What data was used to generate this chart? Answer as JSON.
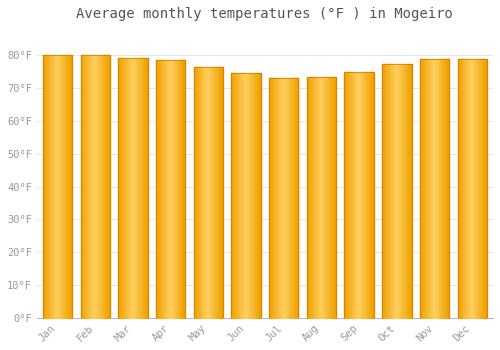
{
  "title": "Average monthly temperatures (°F ) in Mogeiro",
  "months": [
    "Jan",
    "Feb",
    "Mar",
    "Apr",
    "May",
    "Jun",
    "Jul",
    "Aug",
    "Sep",
    "Oct",
    "Nov",
    "Dec"
  ],
  "values": [
    80.0,
    80.0,
    79.3,
    78.5,
    76.5,
    74.5,
    73.0,
    73.5,
    75.0,
    77.5,
    79.0,
    79.0
  ],
  "bar_color_center": "#FFD060",
  "bar_color_edge": "#F0A000",
  "background_color": "#FFFFFF",
  "plot_bg_color": "#FFFFFF",
  "grid_color": "#E0E0E0",
  "tick_label_color": "#999999",
  "title_color": "#555555",
  "ylim": [
    0,
    88
  ],
  "yticks": [
    0,
    10,
    20,
    30,
    40,
    50,
    60,
    70,
    80
  ],
  "ytick_labels": [
    "0°F",
    "10°F",
    "20°F",
    "30°F",
    "40°F",
    "50°F",
    "60°F",
    "70°F",
    "80°F"
  ],
  "title_fontsize": 10,
  "tick_fontsize": 7.5
}
